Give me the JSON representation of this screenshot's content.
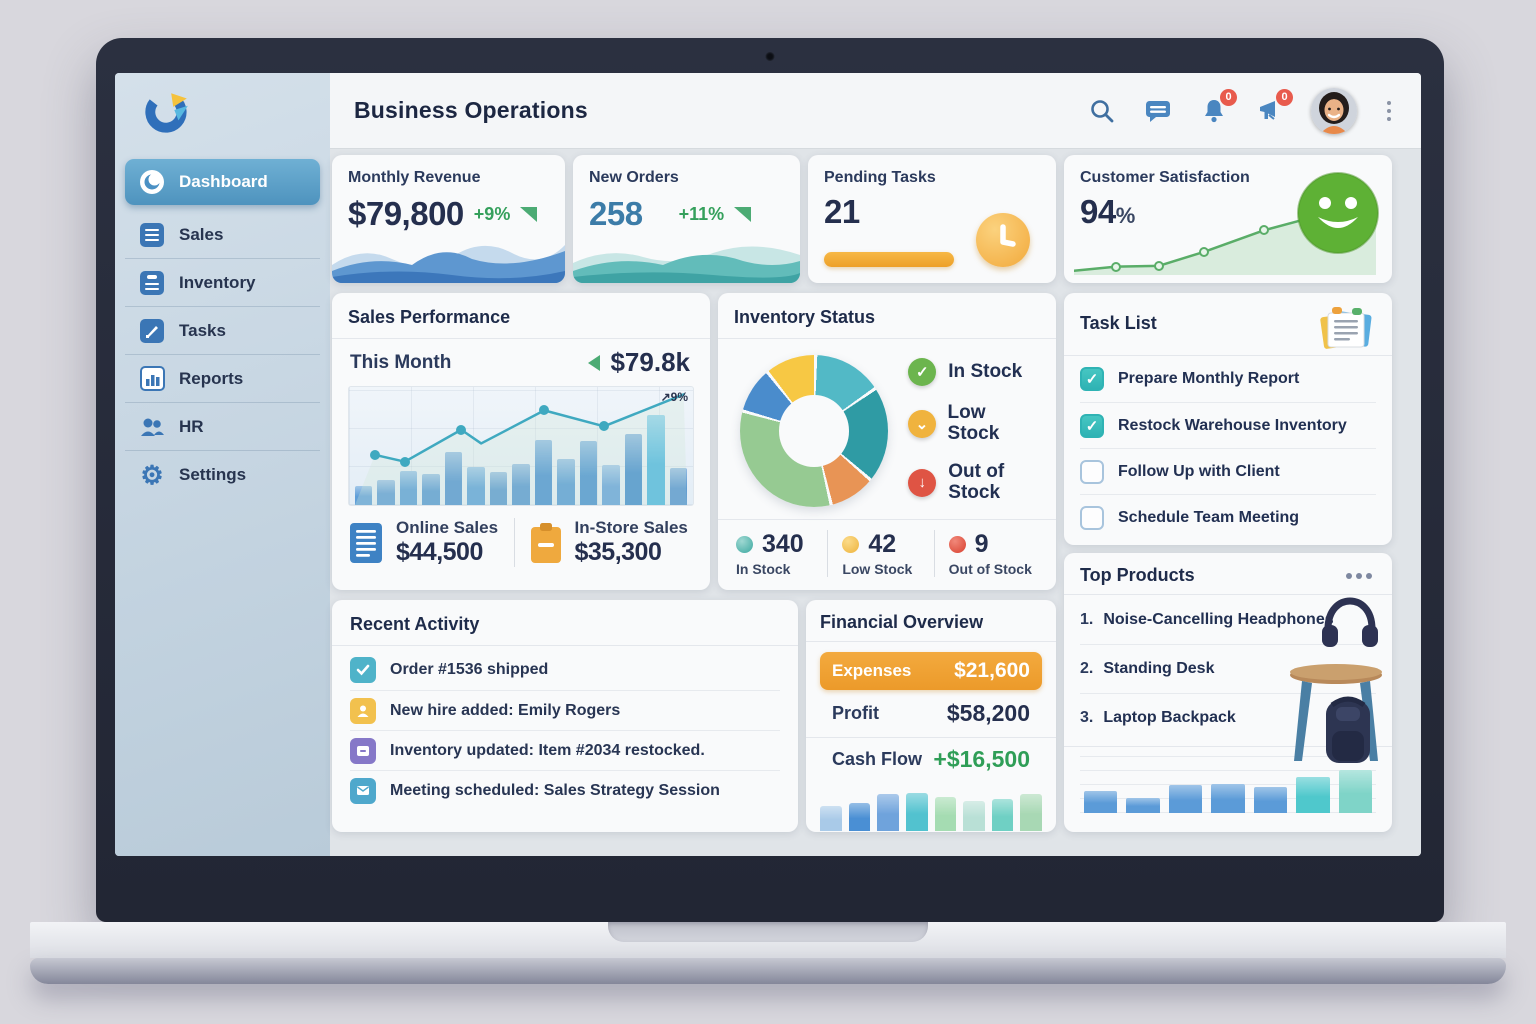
{
  "header": {
    "title": "Business Operations",
    "bell_badge": "0",
    "alert_badge": "0"
  },
  "sidebar": {
    "items": [
      {
        "label": "Dashboard"
      },
      {
        "label": "Sales"
      },
      {
        "label": "Inventory"
      },
      {
        "label": "Tasks"
      },
      {
        "label": "Reports"
      },
      {
        "label": "HR"
      },
      {
        "label": "Settings"
      }
    ]
  },
  "kpi": {
    "revenue": {
      "title": "Monthly Revenue",
      "value": "$79,800",
      "delta": "+9%"
    },
    "orders": {
      "title": "New Orders",
      "value": "258",
      "delta": "+11%"
    },
    "pending": {
      "title": "Pending Tasks",
      "value": "21"
    },
    "satisfaction": {
      "title": "Customer Satisfaction",
      "value": "94",
      "unit": "%"
    }
  },
  "sales": {
    "title": "Sales Performance",
    "period_label": "This Month",
    "period_value": "$79.8k",
    "annotation": "9%",
    "online_label": "Online Sales",
    "online_value": "$44,500",
    "instore_label": "In-Store Sales",
    "instore_value": "$35,300"
  },
  "inventory": {
    "title": "Inventory Status",
    "legend": [
      {
        "label": "In Stock"
      },
      {
        "label": "Low Stock"
      },
      {
        "label": "Out of Stock"
      }
    ],
    "stats": [
      {
        "value": "340",
        "label": "In Stock"
      },
      {
        "value": "42",
        "label": "Low Stock"
      },
      {
        "value": "9",
        "label": "Out of Stock"
      }
    ]
  },
  "tasks": {
    "title": "Task List",
    "items": [
      {
        "label": "Prepare Monthly Report",
        "done": true
      },
      {
        "label": "Restock Warehouse Inventory",
        "done": true
      },
      {
        "label": "Follow Up with Client",
        "done": false
      },
      {
        "label": "Schedule Team Meeting",
        "done": false
      }
    ]
  },
  "activity": {
    "title": "Recent Activity",
    "items": [
      {
        "text": "Order #1536 shipped"
      },
      {
        "text": "New hire added: Emily Rogers"
      },
      {
        "text": "Inventory updated: Item #2034 restocked."
      },
      {
        "text": "Meeting scheduled: Sales Strategy Session"
      }
    ]
  },
  "financial": {
    "title": "Financial Overview",
    "expenses_label": "Expenses",
    "expenses_value": "$21,600",
    "profit_label": "Profit",
    "profit_value": "$58,200",
    "cashflow_label": "Cash Flow",
    "cashflow_value": "+$16,500"
  },
  "products": {
    "title": "Top Products",
    "items": [
      {
        "rank": "1.",
        "name": "Noise-Cancelling Headphones"
      },
      {
        "rank": "2.",
        "name": "Standing Desk"
      },
      {
        "rank": "3.",
        "name": "Laptop Backpack"
      }
    ]
  },
  "chart_data": [
    {
      "id": "sales-bars",
      "type": "bar",
      "title": "Sales Performance monthly bars",
      "values": [
        16,
        21,
        29,
        26,
        45,
        32,
        28,
        35,
        55,
        39,
        54,
        34,
        60,
        76,
        31
      ],
      "colors": [
        "#5e9ed8",
        "#5898d4",
        "#539ad6",
        "#5094d2",
        "#4a8fd0",
        "#559dd8",
        "#5294ce",
        "#4f92d0",
        "#418cd0",
        "#4e96d4",
        "#3f8ccf",
        "#5d9eda",
        "#3a87cc",
        "#45b4e0",
        "#4d8fd0"
      ],
      "ylim": [
        0,
        100
      ],
      "grid": true,
      "legend": "none"
    },
    {
      "id": "sales-line",
      "type": "line",
      "title": "Sales trend line (+9%)",
      "points": [
        [
          6,
          44
        ],
        [
          15,
          38
        ],
        [
          32,
          66
        ],
        [
          38,
          54
        ],
        [
          57,
          83
        ],
        [
          75,
          69
        ],
        [
          99,
          97
        ]
      ],
      "dots": [
        0,
        1,
        2,
        4,
        5
      ],
      "color": "#3fa9c0",
      "dot_fill": "#3fa9c0",
      "fill": "#cfe8d8",
      "fill_opacity": 0.3,
      "annotation": "9%"
    },
    {
      "id": "satisfaction-line",
      "type": "line",
      "title": "Customer satisfaction trend (94%)",
      "points": [
        [
          0,
          6
        ],
        [
          14,
          12
        ],
        [
          28,
          13
        ],
        [
          43,
          33
        ],
        [
          63,
          64
        ],
        [
          76,
          79
        ],
        [
          100,
          96
        ]
      ],
      "dots": [
        1,
        2,
        3,
        4,
        5
      ],
      "color": "#5aad68",
      "dot_fill": "#e8f5ea",
      "fill": "#b9ddc0",
      "fill_opacity": 0.5
    },
    {
      "id": "inventory-donut",
      "type": "pie",
      "title": "Inventory Status donut",
      "segments": [
        {
          "label": "segment-cyan",
          "value": 15,
          "color": "#52b9c6"
        },
        {
          "label": "segment-teal",
          "value": 21,
          "color": "#2f9ba4"
        },
        {
          "label": "segment-orange",
          "value": 10,
          "color": "#e89455"
        },
        {
          "label": "segment-green",
          "value": 33,
          "color": "#96ca92"
        },
        {
          "label": "segment-blue",
          "value": 10,
          "color": "#4a8ccc"
        },
        {
          "label": "segment-yellow",
          "value": 11,
          "color": "#f7c844"
        }
      ],
      "counts": {
        "in_stock": 340,
        "low_stock": 42,
        "out_of_stock": 9
      }
    },
    {
      "id": "financial-bars",
      "type": "bar",
      "title": "Cash flow mini bars",
      "values": [
        52,
        58,
        78,
        80,
        70,
        62,
        66,
        78
      ],
      "colors": [
        "#a9cae8",
        "#4a8fd4",
        "#6fa3dc",
        "#52c2cf",
        "#a5dcb2",
        "#b9e0d6",
        "#6fd0c4",
        "#a8d8b4"
      ]
    },
    {
      "id": "product-bars",
      "type": "bar",
      "title": "Top products mini bars",
      "values": [
        38,
        26,
        48,
        50,
        44,
        62,
        75
      ],
      "colors": [
        "#5b9bd8",
        "#5b9bd8",
        "#5b9bd8",
        "#5b9bd8",
        "#5b9bd8",
        "#4fc8cc",
        "#7fd4c8"
      ],
      "grid": true
    }
  ],
  "colors": {
    "accent_blue": "#4a90c4",
    "accent_teal": "#3fa9c0",
    "accent_green": "#5aad68",
    "accent_orange": "#eda028",
    "accent_red": "#e85b4d",
    "card_bg": "#f9fafb"
  }
}
